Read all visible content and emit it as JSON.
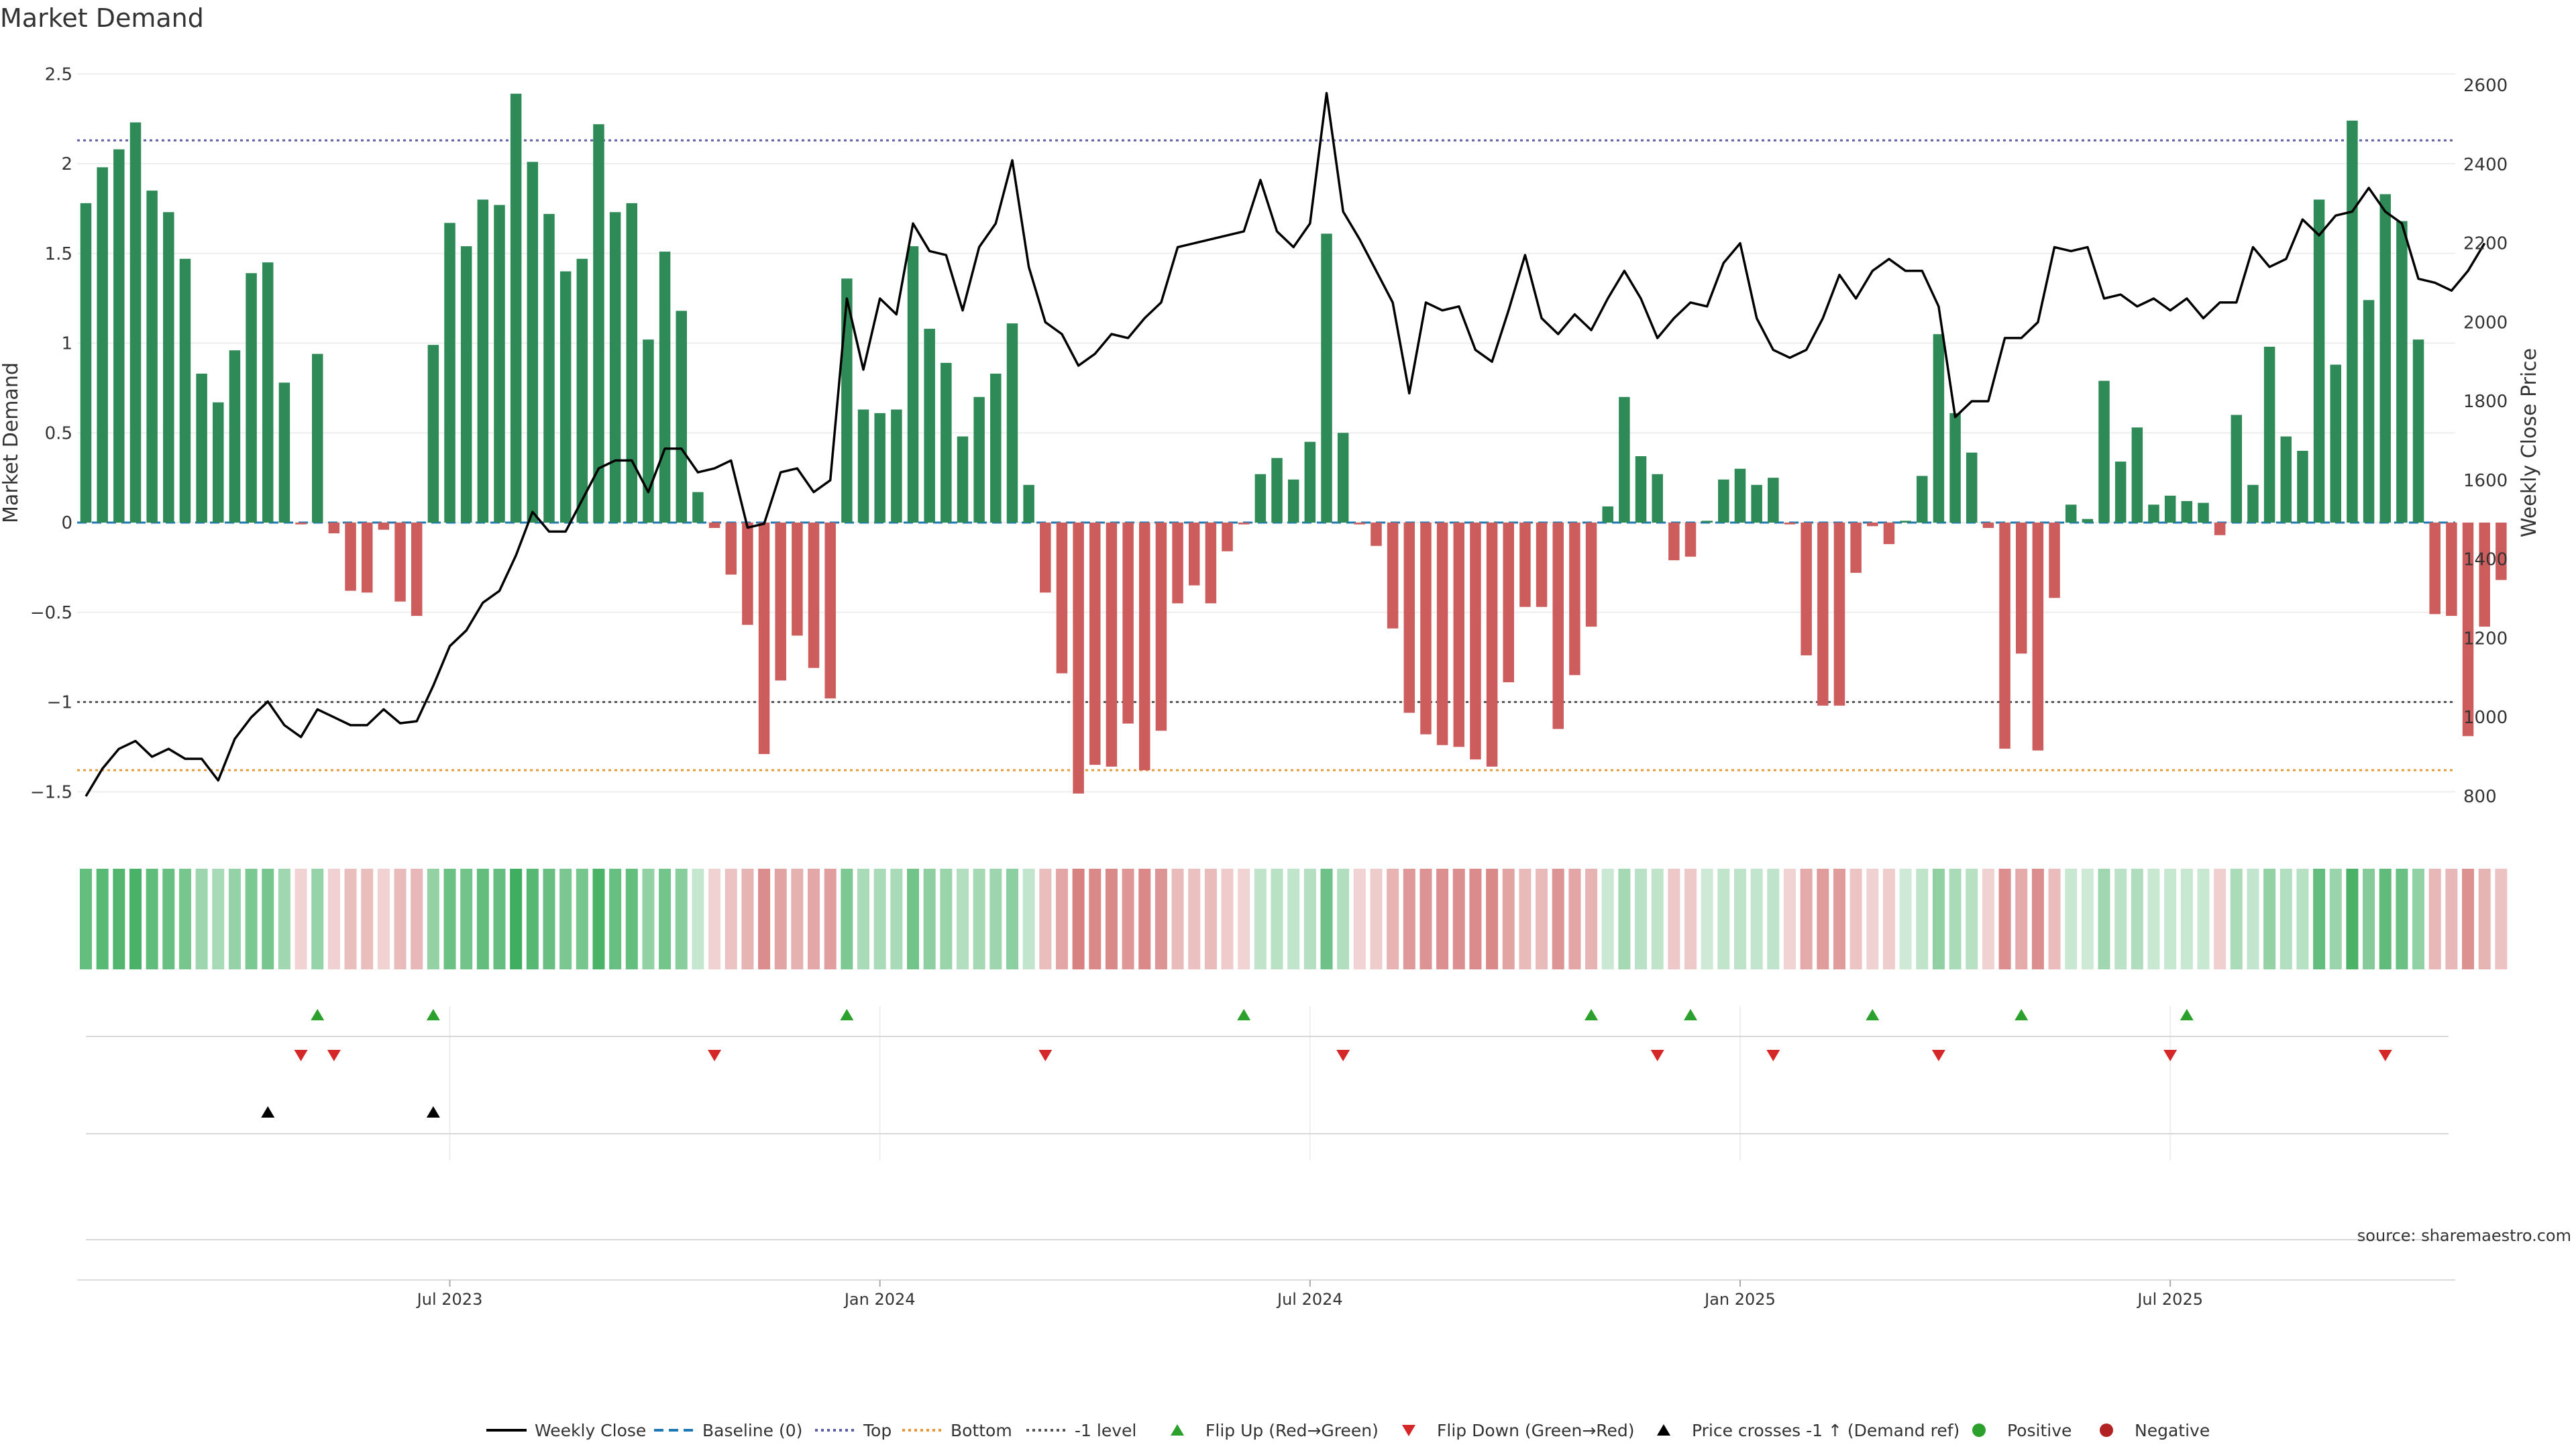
{
  "title": "Market Demand",
  "source": "source: sharemaestro.com",
  "colors": {
    "positive": "#2e8b57",
    "negative": "#cd5c5c",
    "price_line": "#000000",
    "baseline": "#1f77b4",
    "top": "#5b5ea6",
    "bottom": "#e39a3b",
    "minus_one": "#555555",
    "flip_up": "#2ca02c",
    "flip_down": "#d62728"
  },
  "chart_data": {
    "type": "bar",
    "ylabel_left": "Market Demand",
    "ylabel_right": "Weekly Close Price",
    "y_left_range": [
      -1.7,
      2.5
    ],
    "y_left_ticks": [
      -1.5,
      -1,
      -0.5,
      0,
      0.5,
      1,
      1.5,
      2,
      2.5
    ],
    "y_left_tick_labels": [
      "−1.5",
      "−1",
      "−0.5",
      "0",
      "0.5",
      "1",
      "1.5",
      "2",
      "2.5"
    ],
    "y_right_range": [
      790,
      2600
    ],
    "y_right_ticks": [
      800,
      1000,
      1200,
      1400,
      1600,
      1800,
      2000,
      2200,
      2400,
      2600
    ],
    "x_tick_labels": [
      "Jul 2023",
      "Jan 2024",
      "Jul 2024",
      "Jan 2025",
      "Jul 2025"
    ],
    "x_tick_week_index": [
      22,
      48,
      74,
      100,
      126
    ],
    "levels": {
      "top": 2.13,
      "bottom": -1.38,
      "minus_one": -1.0,
      "baseline": 0
    },
    "demand": [
      1.78,
      1.98,
      2.08,
      2.23,
      1.85,
      1.73,
      1.47,
      0.83,
      0.67,
      0.96,
      1.39,
      1.45,
      0.78,
      -0.01,
      0.94,
      -0.06,
      -0.38,
      -0.39,
      -0.04,
      -0.44,
      -0.52,
      0.99,
      1.67,
      1.54,
      1.8,
      1.77,
      2.39,
      2.01,
      1.72,
      1.4,
      1.47,
      2.22,
      1.73,
      1.78,
      1.02,
      1.51,
      1.18,
      0.17,
      -0.03,
      -0.29,
      -0.57,
      -1.29,
      -0.88,
      -0.63,
      -0.81,
      -0.98,
      1.36,
      0.63,
      0.61,
      0.63,
      1.54,
      1.08,
      0.89,
      0.48,
      0.7,
      0.83,
      1.11,
      0.21,
      -0.39,
      -0.84,
      -1.51,
      -1.35,
      -1.36,
      -1.12,
      -1.38,
      -1.16,
      -0.45,
      -0.35,
      -0.45,
      -0.16,
      -0.01,
      0.27,
      0.36,
      0.24,
      0.45,
      1.61,
      0.5,
      -0.01,
      -0.13,
      -0.59,
      -1.06,
      -1.18,
      -1.24,
      -1.25,
      -1.32,
      -1.36,
      -0.89,
      -0.47,
      -0.47,
      -1.15,
      -0.85,
      -0.58,
      0.09,
      0.7,
      0.37,
      0.27,
      -0.21,
      -0.19,
      0.01,
      0.24,
      0.3,
      0.21,
      0.25,
      -0.01,
      -0.74,
      -1.02,
      -1.02,
      -0.28,
      -0.02,
      -0.12,
      0.01,
      0.26,
      1.05,
      0.61,
      0.39,
      -0.03,
      -1.26,
      -0.73,
      -1.27,
      -0.42,
      0.1,
      0.02,
      0.79,
      0.34,
      0.53,
      0.1,
      0.15,
      0.12,
      0.11,
      -0.07,
      0.6,
      0.21,
      0.98,
      0.48,
      0.4,
      1.8,
      0.88,
      2.24,
      1.24,
      1.83,
      1.68,
      1.02,
      -0.51,
      -0.52,
      -1.19,
      -0.58,
      -0.32
    ],
    "weekly_close": [
      800,
      870,
      920,
      940,
      900,
      920,
      895,
      895,
      840,
      945,
      1000,
      1040,
      980,
      950,
      1020,
      1000,
      980,
      980,
      1020,
      985,
      990,
      1080,
      1180,
      1220,
      1290,
      1320,
      1410,
      1520,
      1470,
      1470,
      1550,
      1630,
      1650,
      1650,
      1570,
      1680,
      1680,
      1620,
      1630,
      1650,
      1480,
      1490,
      1620,
      1630,
      1570,
      1600,
      2060,
      1880,
      2060,
      2020,
      2250,
      2180,
      2170,
      2030,
      2190,
      2250,
      2410,
      2140,
      2000,
      1970,
      1890,
      1920,
      1970,
      1960,
      2010,
      2050,
      2190,
      2200,
      2210,
      2220,
      2230,
      2360,
      2230,
      2190,
      2250,
      2580,
      2280,
      2210,
      2130,
      2050,
      1820,
      2050,
      2030,
      2040,
      1930,
      1900,
      2030,
      2170,
      2010,
      1970,
      2020,
      1980,
      2060,
      2130,
      2060,
      1960,
      2010,
      2050,
      2040,
      2150,
      2200,
      2010,
      1930,
      1910,
      1930,
      2010,
      2120,
      2060,
      2130,
      2160,
      2130,
      2130,
      2040,
      1760,
      1800,
      1800,
      1960,
      1960,
      2000,
      2190,
      2180,
      2190,
      2060,
      2070,
      2040,
      2060,
      2030,
      2060,
      2010,
      2050,
      2050,
      2190,
      2140,
      2160,
      2260,
      2220,
      2270,
      2280,
      2340,
      2280,
      2250,
      2110,
      2100,
      2080,
      2130,
      2200
    ],
    "flip_up_week_index": [
      14,
      21,
      46,
      70,
      91,
      97,
      108,
      117,
      127
    ],
    "flip_down_week_index": [
      13,
      15,
      38,
      58,
      76,
      95,
      102,
      112,
      126,
      139
    ],
    "price_cross_week_index": [
      11,
      21
    ],
    "legend_position": "bottom-center",
    "legend": [
      "Weekly Close",
      "Baseline (0)",
      "Top",
      "Bottom",
      "-1 level",
      "Flip Up (Red→Green)",
      "Flip Down (Green→Red)",
      "Price crosses -1 ↑ (Demand ref)",
      "Positive",
      "Negative"
    ]
  }
}
